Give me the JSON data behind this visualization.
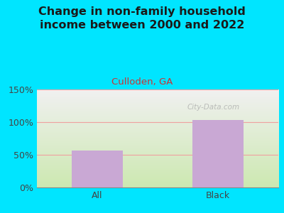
{
  "title": "Change in non-family household\nincome between 2000 and 2022",
  "subtitle": "Culloden, GA",
  "categories": [
    "All",
    "Black"
  ],
  "values": [
    57,
    103
  ],
  "bar_color": "#c9a8d4",
  "title_color": "#1a1a1a",
  "subtitle_color": "#cc3333",
  "title_fontsize": 11.5,
  "subtitle_fontsize": 9.5,
  "tick_fontsize": 9,
  "ylim": [
    0,
    150
  ],
  "yticks": [
    0,
    50,
    100,
    150
  ],
  "ytick_labels": [
    "0%",
    "50%",
    "100%",
    "150%"
  ],
  "background_outer": "#00e5ff",
  "plot_bg_top": "#f0f0f0",
  "plot_bg_bottom": "#cce8b0",
  "watermark": "City-Data.com",
  "watermark_color": "#aaaaaa",
  "grid_color": "#f0a0a0",
  "bar_width": 0.42
}
